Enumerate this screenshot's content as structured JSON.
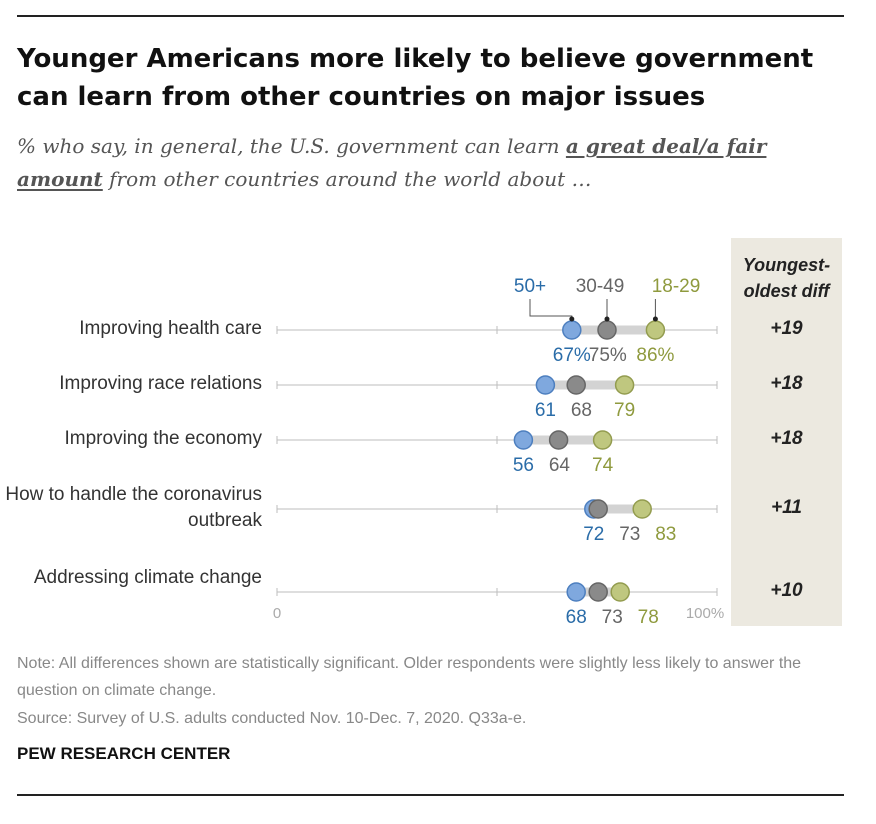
{
  "title": "Younger Americans more likely to believe government can learn from other countries on major issues",
  "subtitle": {
    "before": "% who say, in general, the U.S. government can learn ",
    "emphasis": "a great deal/a fair amount",
    "after": " from other countries around the world about …"
  },
  "diff_header": "Youngest-oldest diff",
  "note": "Note: All differences shown are statistically significant. Older respondents were slightly less likely to answer the question on climate change.",
  "source": "Source: Survey of U.S. adults conducted Nov. 10-Dec. 7, 2020. Q33a-e.",
  "organization": "PEW RESEARCH CENTER",
  "colors": {
    "age_50plus": "#7fa8de",
    "age_30_49": "#8a8a8a",
    "age_18_29": "#bfc77f",
    "age_50plus_text": "#2a6ca8",
    "age_30_49_text": "#666666",
    "age_18_29_text": "#8f9a3e"
  },
  "chart_data": {
    "type": "dot",
    "xlim": [
      0,
      100
    ],
    "x_tick_labels": [
      "0",
      "100%"
    ],
    "series": [
      {
        "name": "50+"
      },
      {
        "name": "30-49"
      },
      {
        "name": "18-29"
      }
    ],
    "rows": [
      {
        "label": "Improving health care",
        "values": [
          67,
          75,
          86
        ],
        "value_labels": [
          "67%",
          "75%",
          "86%"
        ],
        "diff": "+19"
      },
      {
        "label": "Improving race relations",
        "values": [
          61,
          68,
          79
        ],
        "value_labels": [
          "61",
          "68",
          "79"
        ],
        "diff": "+18"
      },
      {
        "label": "Improving the economy",
        "values": [
          56,
          64,
          74
        ],
        "value_labels": [
          "56",
          "64",
          "74"
        ],
        "diff": "+18"
      },
      {
        "label": "How to handle the coronavirus outbreak",
        "values": [
          72,
          73,
          83
        ],
        "value_labels": [
          "72",
          "73",
          "83"
        ],
        "diff": "+11"
      },
      {
        "label": "Addressing climate change",
        "values": [
          68,
          73,
          78
        ],
        "value_labels": [
          "68",
          "73",
          "78"
        ],
        "diff": "+10"
      }
    ]
  }
}
